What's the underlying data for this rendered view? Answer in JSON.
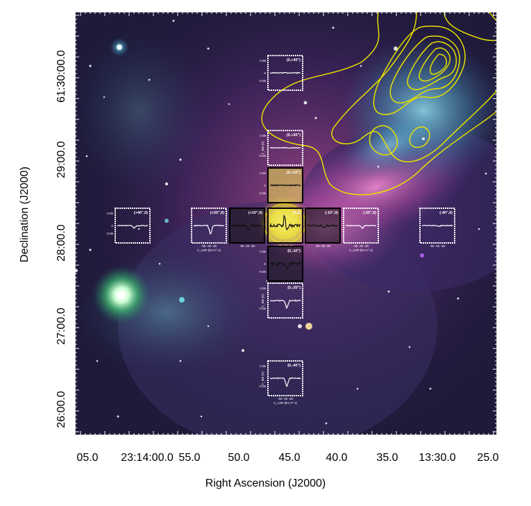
{
  "figure": {
    "xlabel": "Right Ascension (J2000)",
    "ylabel": "Declination (J2000)",
    "x_ticks": [
      "05.0",
      "23:14:00.0",
      "55.0",
      "50.0",
      "45.0",
      "40.0",
      "35.0",
      "13:30.0",
      "25.0"
    ],
    "y_ticks": [
      "61:30:00.0",
      "29:00.0",
      "28:00.0",
      "27:00.0",
      "26:00.0"
    ],
    "contour_color": "#e8e000",
    "frame_color": "#ffffff"
  },
  "insets": [
    {
      "id": "n40",
      "offset": "(0,+40\")",
      "y_top": "0.05",
      "y_mid": "0",
      "y_bot": "-0.05",
      "frame": "white"
    },
    {
      "id": "n20",
      "offset": "(0,+20\")",
      "y_top": "0.05",
      "y_mid": "T_MB (K)",
      "y_bot": "-0.05",
      "frame": "white"
    },
    {
      "id": "n10",
      "offset": "(0,+10\")",
      "y_top": "0.05",
      "y_mid": "0",
      "y_bot": "-0.05",
      "frame": "black"
    },
    {
      "id": "w40",
      "offset": "(+40\",0)",
      "y_top": "0.05",
      "y_mid": "0",
      "y_bot": "-0.05",
      "frame": "white"
    },
    {
      "id": "w20",
      "offset": "(+20\",0)",
      "x_ticks": "-50 -40 -30",
      "x_label": "V_LSR (km s^-1)",
      "frame": "white"
    },
    {
      "id": "w10",
      "offset": "(+10\",0)",
      "x_ticks": "-50 -40 -30",
      "frame": "black"
    },
    {
      "id": "c0",
      "offset": "(0,0)",
      "x_ticks": "-50 -40 -30",
      "frame": "black"
    },
    {
      "id": "e10",
      "offset": "(-10\",0)",
      "x_ticks": "-50 -40 -30",
      "frame": "black"
    },
    {
      "id": "e20",
      "offset": "(-20\",0)",
      "x_ticks": "-50 -40 -30",
      "x_label": "V_LSR (km s^-1)",
      "frame": "white"
    },
    {
      "id": "e40",
      "offset": "(-40\",0)",
      "x_ticks": "-50 -40 -30",
      "frame": "white"
    },
    {
      "id": "s10",
      "offset": "(0,-10\")",
      "y_top": "0.05",
      "y_mid": "0",
      "y_bot": "-0.05",
      "frame": "black"
    },
    {
      "id": "s20",
      "offset": "(0,-20\")",
      "y_top": "0.05",
      "y_mid": "T_MB (K)",
      "y_bot": "-0.05",
      "frame": "white"
    },
    {
      "id": "s40",
      "offset": "(0,-40\")",
      "y_top": "0.05",
      "y_mid": "T_MB (K)",
      "y_bot": "-0.05",
      "x_ticks": "-50 -40 -30",
      "x_label": "V_LSR (km s^-1)",
      "frame": "white"
    }
  ]
}
